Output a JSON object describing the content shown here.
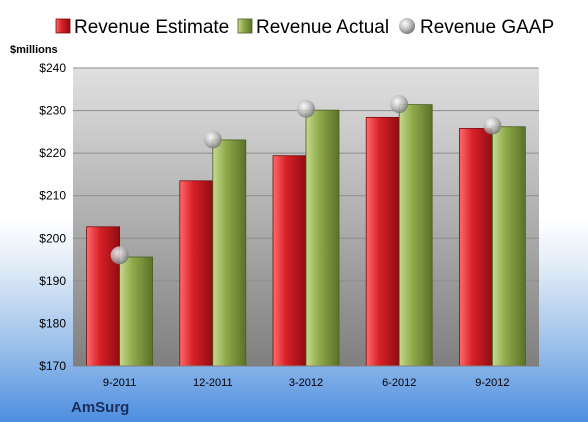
{
  "colors": {
    "estimate": "#d4202a",
    "actual": "#8faa4a",
    "gaap": "#b9b9b9",
    "plot_top": "#e0e0e0",
    "plot_bottom": "#7f7f7f"
  },
  "company": "AmSurg",
  "chart_data": {
    "type": "bar",
    "units_label": "$millions",
    "categories": [
      "9-2011",
      "12-2011",
      "3-2012",
      "6-2012",
      "9-2012"
    ],
    "series": [
      {
        "name": "Revenue Estimate",
        "values": [
          202.7,
          213.5,
          219.4,
          228.4,
          225.8
        ]
      },
      {
        "name": "Revenue Actual",
        "values": [
          195.6,
          223.1,
          230.1,
          231.4,
          226.2
        ]
      },
      {
        "name": "Revenue GAAP",
        "values": [
          196.0,
          223.2,
          230.4,
          231.5,
          226.5
        ]
      }
    ],
    "ylim": [
      170,
      240
    ],
    "yticks": [
      170,
      180,
      190,
      200,
      210,
      220,
      230,
      240
    ],
    "ytick_labels": [
      "$170",
      "$180",
      "$190",
      "$200",
      "$210",
      "$220",
      "$230",
      "$240"
    ],
    "grid": true,
    "legend_position": "top"
  }
}
